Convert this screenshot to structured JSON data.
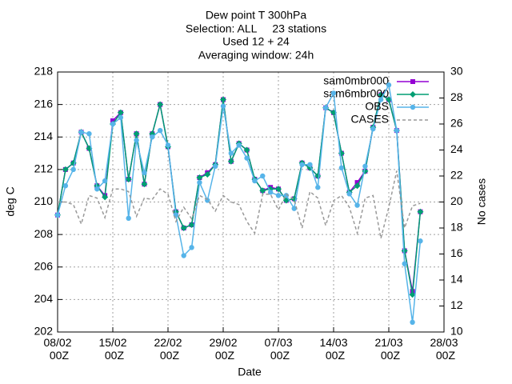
{
  "chart_data": {
    "type": "line",
    "title": "Dew point T 300hPa",
    "subtitle": [
      "Selection: ALL     23 stations",
      "Used 12 + 24",
      "Averaging window: 24h"
    ],
    "xlabel": "Date",
    "ylabel": "deg C",
    "y2label": "No cases",
    "x": [
      "08/02",
      "09/02",
      "10/02",
      "11/02",
      "12/02",
      "13/02",
      "14/02",
      "15/02",
      "16/02",
      "17/02",
      "18/02",
      "19/02",
      "20/02",
      "21/02",
      "22/02",
      "23/02",
      "24/02",
      "25/02",
      "26/02",
      "27/02",
      "28/02",
      "29/02",
      "01/03",
      "02/03",
      "03/03",
      "04/03",
      "05/03",
      "06/03",
      "07/03",
      "08/03",
      "09/03",
      "10/03",
      "11/03",
      "12/03",
      "13/03",
      "14/03",
      "15/03",
      "16/03",
      "17/03",
      "18/03",
      "19/03",
      "20/03",
      "21/03",
      "22/03",
      "23/03",
      "24/03",
      "25/03"
    ],
    "xlim": [
      "08/02",
      "28/03"
    ],
    "xticks": [
      {
        "value": "08/02",
        "label": "08/02 00Z"
      },
      {
        "value": "15/02",
        "label": "15/02 00Z"
      },
      {
        "value": "22/02",
        "label": "22/02 00Z"
      },
      {
        "value": "29/02",
        "label": "29/02 00Z"
      },
      {
        "value": "07/03",
        "label": "07/03 00Z"
      },
      {
        "value": "14/03",
        "label": "14/03 00Z"
      },
      {
        "value": "21/03",
        "label": "21/03 00Z"
      },
      {
        "value": "28/03",
        "label": "28/03 00Z"
      }
    ],
    "ylim": [
      202,
      218
    ],
    "yticks": [
      202,
      204,
      206,
      208,
      210,
      212,
      214,
      216,
      218
    ],
    "y2lim": [
      10,
      30
    ],
    "y2ticks": [
      10,
      12,
      14,
      16,
      18,
      20,
      22,
      24,
      26,
      28,
      30
    ],
    "grid": true,
    "legend": "top-right",
    "series": [
      {
        "name": "sam0mbr000",
        "color": "#9400d3",
        "marker": "square",
        "values": [
          209.2,
          212,
          212.4,
          214.3,
          213.3,
          211,
          210.4,
          215,
          215.5,
          211.4,
          214.2,
          211.1,
          214.2,
          216,
          213.4,
          209.4,
          208.4,
          208.6,
          211.5,
          211.8,
          212.3,
          216.3,
          212.5,
          213.6,
          213.2,
          211.4,
          210.7,
          210.9,
          210.8,
          210.1,
          210.2,
          212.4,
          212.1,
          211.6,
          215.8,
          215.5,
          213,
          210.6,
          211.2,
          211.9,
          214.6,
          216.6,
          216.3,
          214.4,
          207,
          204.5,
          209.4
        ]
      },
      {
        "name": "sam6mbr000",
        "color": "#009e73",
        "marker": "diamond",
        "values": [
          209.2,
          212,
          212.4,
          214.3,
          213.3,
          211,
          210.3,
          214.8,
          215.5,
          211.4,
          214.2,
          211.1,
          214.2,
          216,
          213.4,
          209.4,
          208.4,
          208.6,
          211.5,
          211.7,
          212.3,
          216.3,
          212.5,
          213.6,
          213.2,
          211.4,
          210.7,
          210.8,
          210.8,
          210.1,
          210.2,
          212.4,
          212.1,
          211.6,
          215.8,
          215.5,
          213,
          210.6,
          211,
          211.9,
          214.6,
          216.6,
          216.3,
          214.4,
          207,
          204.3,
          209.4
        ]
      },
      {
        "name": "OBS",
        "color": "#56b4e9",
        "marker": "circle",
        "values": [
          209.2,
          211,
          212,
          214.3,
          214.2,
          210.8,
          211.3,
          214.8,
          215.2,
          209,
          213.8,
          211.8,
          214,
          214.4,
          213.5,
          209.2,
          206.7,
          207.2,
          211.2,
          210.1,
          212.2,
          215.9,
          213,
          213.5,
          212.7,
          211.3,
          211.6,
          210.6,
          210.4,
          210.4,
          209.6,
          212.3,
          212.3,
          210.9,
          215.8,
          216.7,
          212.1,
          210.5,
          209.8,
          212.2,
          214.5,
          216.3,
          217.2,
          214.4,
          206.2,
          202.6,
          207.6
        ]
      },
      {
        "name": "CASES",
        "color": "#999999",
        "axis": "y2",
        "dashed": true,
        "values": [
          20,
          20,
          19.8,
          18.3,
          20.5,
          20.3,
          18.8,
          21,
          21,
          20.8,
          18.9,
          20.3,
          20.2,
          21,
          20.6,
          18.5,
          19.6,
          18.7,
          20.5,
          20.2,
          19.3,
          20.5,
          20,
          19.8,
          18.5,
          17.6,
          20.6,
          20.6,
          19.4,
          20.6,
          20.2,
          18,
          20.8,
          20.3,
          18.2,
          20.1,
          20.5,
          19.6,
          17.6,
          20.3,
          20.5,
          17.2,
          19.6,
          22.4,
          18,
          19.7,
          19.9
        ]
      }
    ]
  }
}
